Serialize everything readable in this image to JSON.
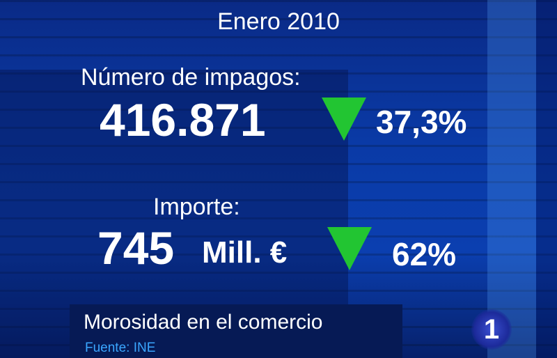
{
  "header": {
    "date": "Enero 2010"
  },
  "impagos": {
    "label": "Número de impagos:",
    "value": "416.871",
    "change": "37,3%",
    "direction": "down"
  },
  "importe": {
    "label": "Importe:",
    "value": "745",
    "unit": "Mill. €",
    "change": "62%",
    "direction": "down"
  },
  "footer": {
    "title": "Morosidad en el comercio",
    "source": "Fuente: INE"
  },
  "logo": {
    "text": "1"
  },
  "colors": {
    "arrow": "#22c532",
    "source": "#3aa6ff",
    "background": "#0a3aa6"
  }
}
